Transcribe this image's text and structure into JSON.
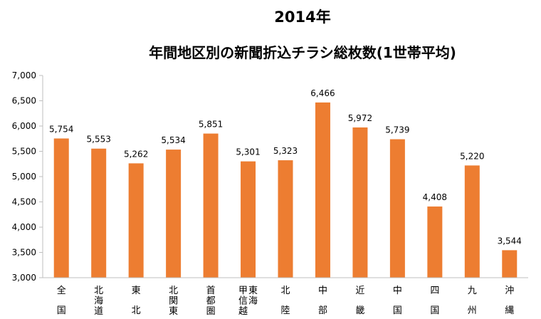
{
  "chart_data": {
    "type": "bar",
    "title": "2014年",
    "subtitle": "年間地区別の新聞折込チラシ総枚数(1世帯平均)",
    "categories": [
      {
        "columns": [
          "全",
          "国"
        ]
      },
      {
        "columns": [
          "北海道"
        ]
      },
      {
        "columns": [
          "東",
          "北"
        ]
      },
      {
        "columns": [
          "北関東"
        ]
      },
      {
        "columns": [
          "首都圏"
        ]
      },
      {
        "columns": [
          "甲信越",
          "東海"
        ]
      },
      {
        "columns": [
          "北",
          "陸"
        ]
      },
      {
        "columns": [
          "中",
          "部"
        ]
      },
      {
        "columns": [
          "近",
          "畿"
        ]
      },
      {
        "columns": [
          "中",
          "国"
        ]
      },
      {
        "columns": [
          "四",
          "国"
        ]
      },
      {
        "columns": [
          "九",
          "州"
        ]
      },
      {
        "columns": [
          "沖",
          "縄"
        ]
      }
    ],
    "values": [
      5754,
      5553,
      5262,
      5534,
      5851,
      5301,
      5323,
      6466,
      5972,
      5739,
      4408,
      5220,
      3544
    ],
    "data_labels": [
      "5,754",
      "5,553",
      "5,262",
      "5,534",
      "5,851",
      "5,301",
      "5,323",
      "6,466",
      "5,972",
      "5,739",
      "4,408",
      "5,220",
      "3,544"
    ],
    "y_ticks": [
      "3,000",
      "3,500",
      "4,000",
      "4,500",
      "5,000",
      "5,500",
      "6,000",
      "6,500",
      "7,000"
    ],
    "ylim": [
      3000,
      7000
    ],
    "bar_color": "#ED7D31",
    "axis_color": "#BFBFBF",
    "grid": false,
    "legend": "none"
  }
}
